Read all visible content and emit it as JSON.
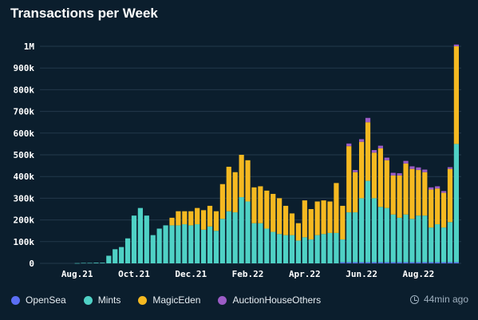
{
  "title": "Transactions per Week",
  "updated": "44min ago",
  "chart_data": {
    "type": "bar",
    "stacked": true,
    "ylim": [
      0,
      1000000
    ],
    "yticks": [
      0,
      100000,
      200000,
      300000,
      400000,
      500000,
      600000,
      700000,
      800000,
      900000,
      1000000
    ],
    "ytick_labels": [
      "0",
      "100k",
      "200k",
      "300k",
      "400k",
      "500k",
      "600k",
      "700k",
      "800k",
      "900k",
      "1M"
    ],
    "xtick_labels": [
      "Aug.21",
      "Oct.21",
      "Dec.21",
      "Feb.22",
      "Apr.22",
      "Jun.22",
      "Aug.22"
    ],
    "xtick_weeks": [
      5,
      14,
      23,
      32,
      41,
      50,
      59
    ],
    "grid": true,
    "legend_position": "bottom-left",
    "series": [
      {
        "name": "OpenSea",
        "color": "#5b6ef5",
        "values": [
          0,
          0,
          0,
          0,
          0,
          0,
          0,
          0,
          0,
          0,
          0,
          0,
          0,
          0,
          0,
          0,
          0,
          0,
          0,
          0,
          0,
          0,
          0,
          0,
          0,
          0,
          0,
          0,
          0,
          0,
          0,
          0,
          0,
          0,
          0,
          0,
          0,
          0,
          0,
          0,
          0,
          0,
          0,
          0,
          0,
          0,
          0,
          5000,
          5000,
          5000,
          5000,
          5000,
          5000,
          5000,
          5000,
          5000,
          5000,
          5000,
          5000,
          5000,
          5000,
          5000,
          5000,
          5000,
          5000,
          5000
        ]
      },
      {
        "name": "Mints",
        "color": "#4fd1c5",
        "values": [
          0,
          0,
          0,
          0,
          0,
          1000,
          2000,
          2000,
          3000,
          3000,
          35000,
          65000,
          75000,
          115000,
          220000,
          255000,
          220000,
          130000,
          160000,
          175000,
          175000,
          175000,
          180000,
          175000,
          180000,
          155000,
          170000,
          150000,
          205000,
          240000,
          235000,
          305000,
          285000,
          185000,
          185000,
          160000,
          145000,
          135000,
          130000,
          130000,
          105000,
          120000,
          110000,
          130000,
          135000,
          140000,
          140000,
          105000,
          230000,
          230000,
          295000,
          375000,
          295000,
          255000,
          250000,
          220000,
          205000,
          220000,
          200000,
          215000,
          215000,
          160000,
          175000,
          160000,
          185000,
          545000
        ]
      },
      {
        "name": "MagicEden",
        "color": "#f5b921",
        "values": [
          0,
          0,
          0,
          0,
          0,
          0,
          0,
          0,
          0,
          0,
          0,
          0,
          0,
          0,
          0,
          0,
          0,
          0,
          0,
          0,
          35000,
          65000,
          60000,
          65000,
          75000,
          90000,
          95000,
          90000,
          160000,
          205000,
          185000,
          195000,
          190000,
          165000,
          170000,
          175000,
          175000,
          165000,
          135000,
          100000,
          80000,
          170000,
          140000,
          155000,
          155000,
          145000,
          230000,
          155000,
          305000,
          185000,
          260000,
          270000,
          210000,
          270000,
          220000,
          180000,
          195000,
          235000,
          230000,
          210000,
          200000,
          175000,
          165000,
          160000,
          245000,
          450000
        ]
      },
      {
        "name": "AuctionHouseOthers",
        "color": "#9b5cc6",
        "values": [
          0,
          0,
          0,
          0,
          0,
          0,
          0,
          0,
          0,
          0,
          0,
          0,
          0,
          0,
          0,
          0,
          0,
          0,
          0,
          0,
          0,
          0,
          0,
          0,
          0,
          0,
          0,
          0,
          0,
          0,
          0,
          0,
          0,
          0,
          0,
          0,
          0,
          0,
          0,
          0,
          0,
          0,
          0,
          0,
          0,
          0,
          0,
          0,
          12000,
          10000,
          12000,
          20000,
          12000,
          12000,
          12000,
          12000,
          10000,
          12000,
          12000,
          12000,
          12000,
          10000,
          10000,
          8000,
          8000,
          8000
        ]
      }
    ]
  }
}
